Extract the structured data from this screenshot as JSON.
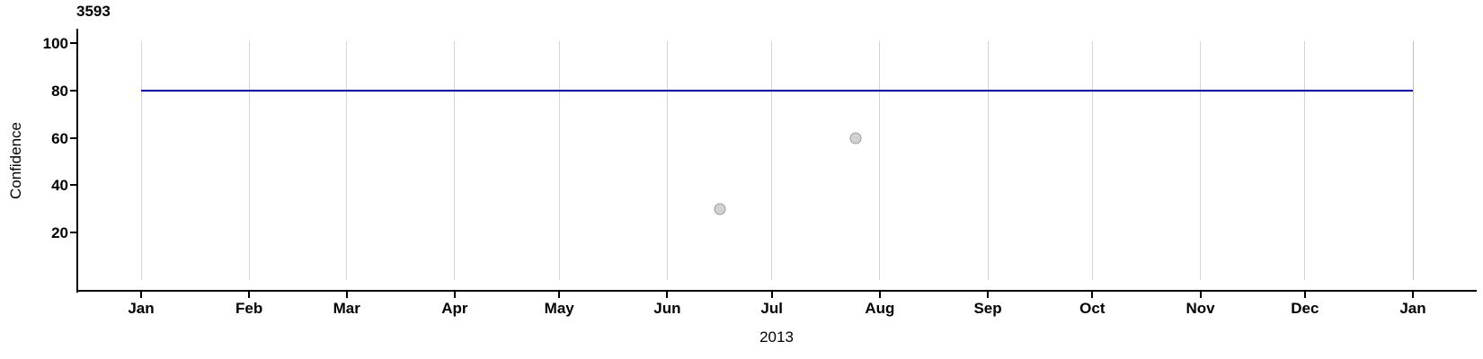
{
  "chart_data": {
    "type": "scatter",
    "title": "3593",
    "ylabel": "Confidence",
    "xlabel": "2013",
    "ylim": [
      0,
      105
    ],
    "y_ticks": [
      20,
      40,
      60,
      80,
      100
    ],
    "x_tick_labels": [
      "Jan",
      "Feb",
      "Mar",
      "Apr",
      "May",
      "Jun",
      "Jul",
      "Aug",
      "Sep",
      "Oct",
      "Nov",
      "Dec",
      "Jan"
    ],
    "x_tick_days": [
      0,
      31,
      59,
      90,
      120,
      151,
      181,
      212,
      243,
      273,
      304,
      334,
      365
    ],
    "x_range_days": 365,
    "grid": "vertical-monthly",
    "legend": "none",
    "reference_line": {
      "value": 80,
      "color": "#0000cc"
    },
    "points": [
      {
        "x_approx": "2013-06-15",
        "day_of_year": 166,
        "value": 30
      },
      {
        "x_approx": "2013-07-24",
        "day_of_year": 205,
        "value": 60
      }
    ],
    "colors": {
      "axis": "#000000",
      "gridline": "#d4d4d4",
      "point_fill": "#d2d2d2",
      "point_stroke": "#9c9c9c",
      "reference_line": "#0000cc"
    }
  }
}
